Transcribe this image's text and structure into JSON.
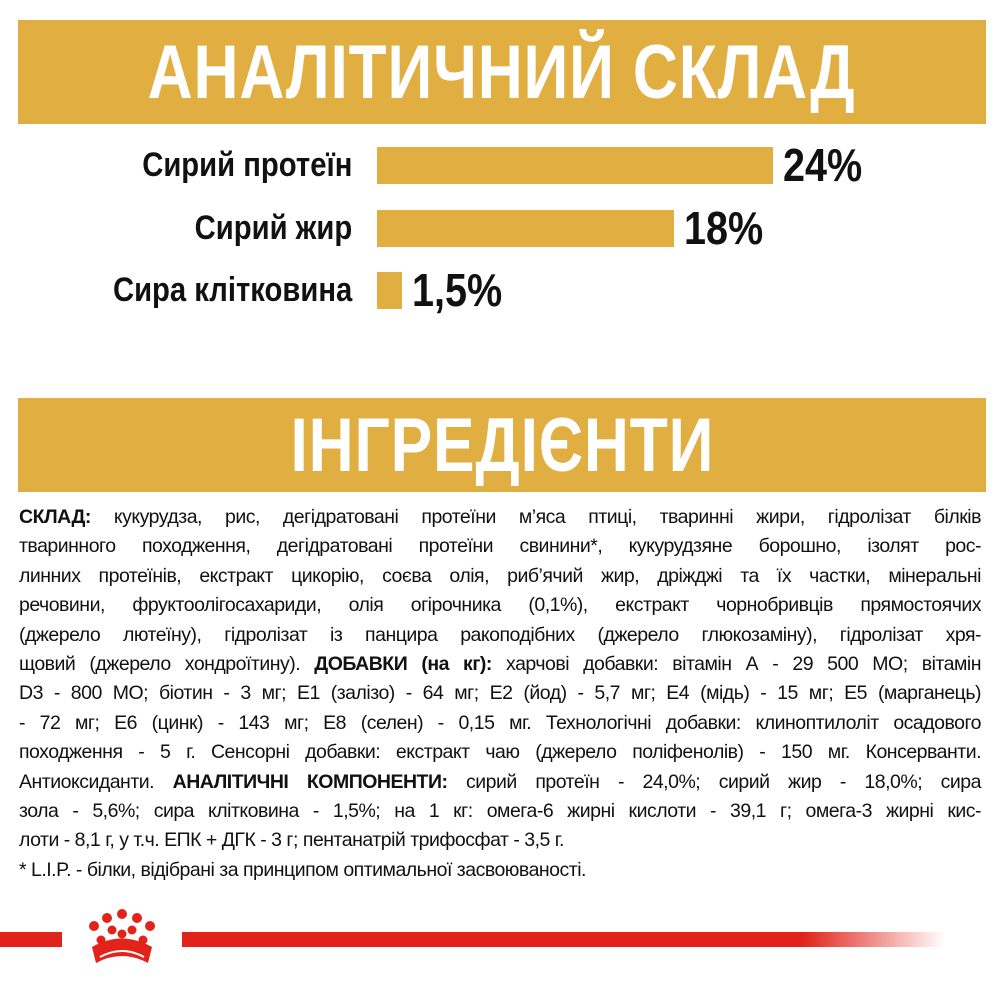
{
  "analysis": {
    "title": "АНАЛІТИЧНИЙ СКЛАД",
    "bar_color": "#e1ae42",
    "rows": [
      {
        "label": "Сирий протеїн",
        "value_text": "24%",
        "value": 24
      },
      {
        "label": "Сирий жир",
        "value_text": "18%",
        "value": 18
      },
      {
        "label": "Сира клітковина",
        "value_text": "1,5%",
        "value": 1.5
      }
    ]
  },
  "ingredients": {
    "title": "ІНГРЕДІЄНТИ",
    "lines": [
      [
        {
          "b": "СКЛАД:"
        },
        {
          "t": " кукурудза, рис, дегідратовані протеїни м’яса птиці, тваринні жири, гідролізат білків"
        }
      ],
      [
        {
          "t": "тваринного походження, дегідратовані протеїни свинини*, кукурудзяне борошно, ізолят рос-"
        }
      ],
      [
        {
          "t": "линних протеїнів, екстракт цикорію, соєва олія, риб’ячий жир, дріжджі та їх частки, мінеральні"
        }
      ],
      [
        {
          "t": "речовини, фруктоолігосахариди, олія огірочника (0,1%), екстракт чорнобривців прямостоячих"
        }
      ],
      [
        {
          "t": "(джерело лютеїну), гідролізат із панцира ракоподібних (джерело глюкозаміну), гідролізат хря-"
        }
      ],
      [
        {
          "t": "щовий (джерело хондроїтину). "
        },
        {
          "b": "ДОБАВКИ (на кг):"
        },
        {
          "t": " харчові добавки: вітамін А - 29 500 МО; вітамін"
        }
      ],
      [
        {
          "t": "D3 - 800 МО; біотин - 3 мг; E1 (залізо) - 64 мг; E2 (йод) - 5,7 мг; E4 (мідь) - 15 мг; E5 (марганець)"
        }
      ],
      [
        {
          "t": "- 72 мг; E6 (цинк) - 143 мг; E8 (селен) - 0,15 мг. Технологічні добавки: клиноптилоліт осадового"
        }
      ],
      [
        {
          "t": "походження - 5 г. Сенсорні добавки: екстракт чаю (джерело поліфенолів) - 150 мг. Консерванти."
        }
      ],
      [
        {
          "t": "Антиоксиданти. "
        },
        {
          "b": "АНАЛІТИЧНІ КОМПОНЕНТИ:"
        },
        {
          "t": " сирий протеїн - 24,0%; сирий жир - 18,0%; сира"
        }
      ],
      [
        {
          "t": "зола - 5,6%; сира клітковина - 1,5%; на 1 кг: омега-6 жирні кислоти - 39,1 г; омега-3 жирні кис-"
        }
      ],
      [
        {
          "t": "лоти - 8,1 г, у т.ч. ЕПК + ДГК - 3 г; пентанатрій трифосфат - 3,5 г."
        }
      ],
      [
        {
          "t": "* L.I.P. - білки, відібрані за принципом оптимальної засвоюваності."
        }
      ]
    ]
  },
  "footer": {
    "logo_icon": "royal-canin-crown-icon",
    "accent_color": "#e2231a"
  }
}
